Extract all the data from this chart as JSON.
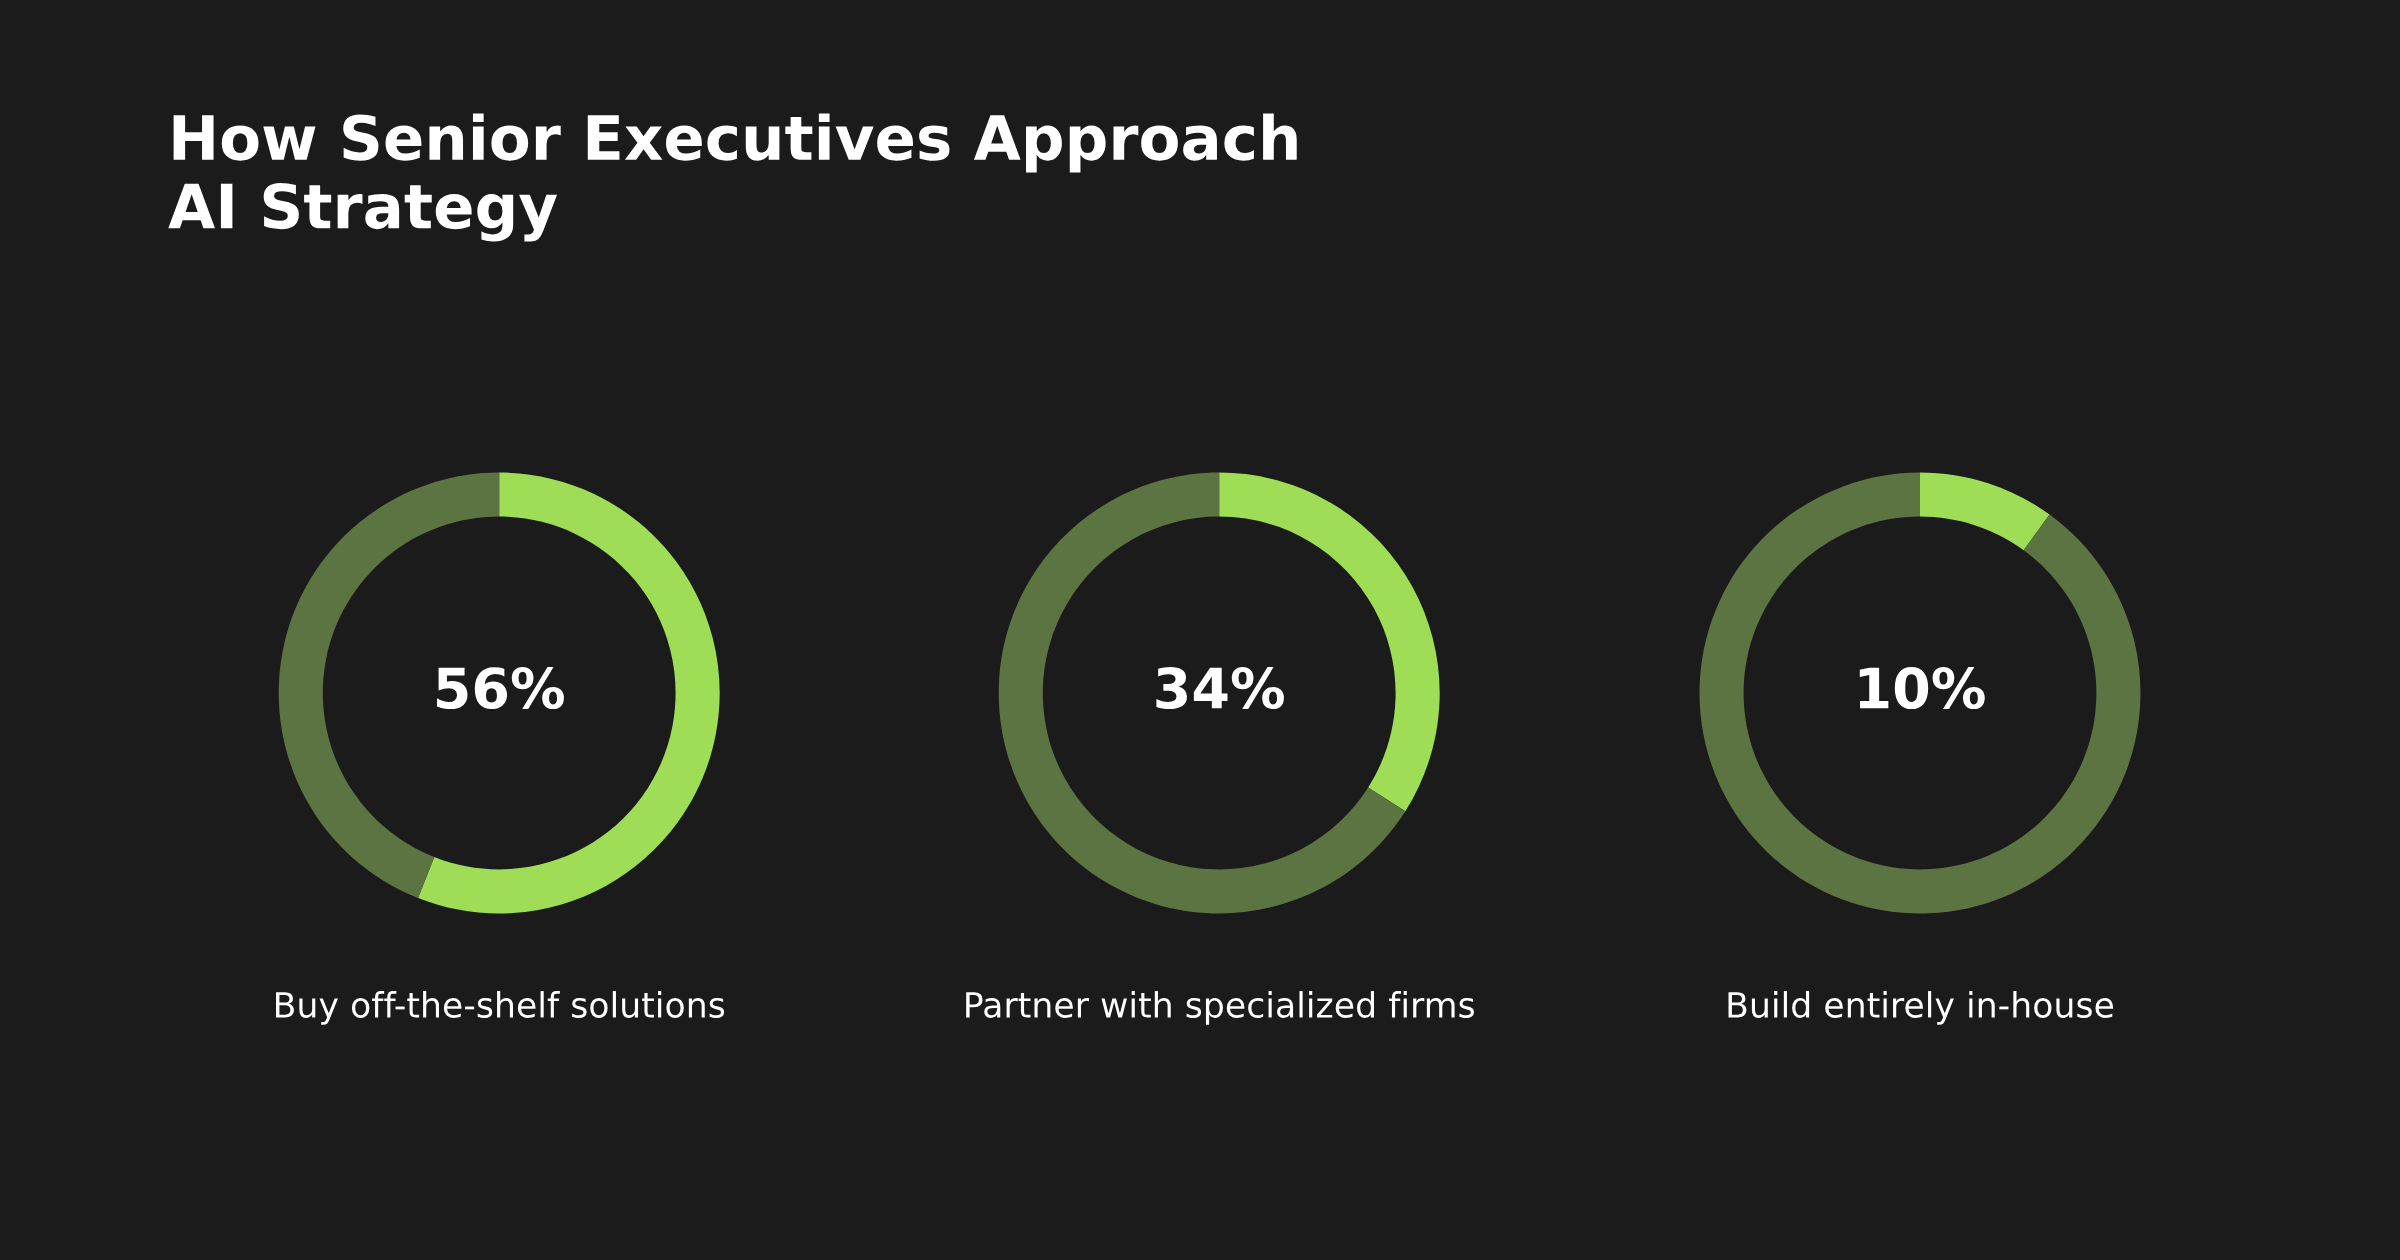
{
  "chart_data": [
    {
      "type": "donut",
      "title": "How Senior Executives Approach\nAI Strategy",
      "xlabel": "Buy off-the-shelf solutions",
      "categories": [
        null,
        null
      ],
      "values": [
        56,
        44
      ],
      "colors": [
        "#9edd55",
        "#5c7441"
      ],
      "value_labels": [
        "56%",
        null
      ]
    },
    {
      "type": "donut",
      "xlabel": "Partner with specialized firms",
      "categories": [
        null,
        null
      ],
      "values": [
        34,
        66
      ],
      "colors": [
        "#9edd55",
        "#5c7441"
      ],
      "value_labels": [
        "34%",
        null
      ]
    },
    {
      "type": "donut",
      "xlabel": "Build entirely in-house",
      "categories": [
        null,
        null
      ],
      "values": [
        10,
        90
      ],
      "colors": [
        "#9edd55",
        "#5c7441"
      ],
      "value_labels": [
        "10%",
        null
      ]
    }
  ]
}
